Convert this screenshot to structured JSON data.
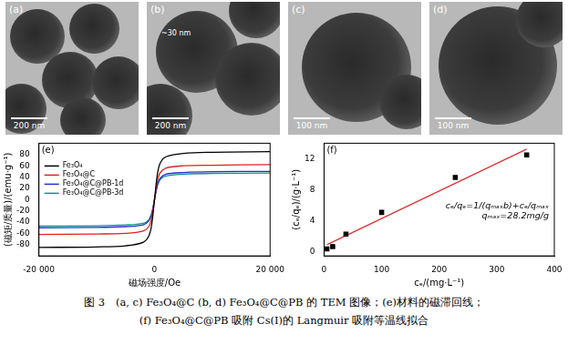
{
  "images": [
    {
      "label": "(a)",
      "scale_bar": "200 nm"
    },
    {
      "label": "(b)",
      "scale_bar": "200 nm",
      "annotation": "~30 nm"
    },
    {
      "label": "(c)",
      "scale_bar": "100 nm"
    },
    {
      "label": "(d)",
      "scale_bar": "100 nm"
    }
  ],
  "chart_data": [
    {
      "type": "line",
      "label": "(e)",
      "x_label": "磁场强度/Oe",
      "y_label": "(磁矩/质量)/(emu·g⁻¹)",
      "x": [
        -20000,
        -10000,
        -5000,
        -2000,
        -1000,
        -500,
        0,
        500,
        1000,
        2000,
        5000,
        10000,
        20000
      ],
      "series": [
        {
          "name": "Fe₃O₄",
          "color": "#000000",
          "values": [
            -85,
            -84,
            -82,
            -76,
            -65,
            -45,
            0,
            45,
            65,
            76,
            82,
            84,
            85
          ]
        },
        {
          "name": "Fe₃O₄@C",
          "color": "#e02020",
          "values": [
            -62,
            -61,
            -60,
            -56,
            -48,
            -33,
            0,
            33,
            48,
            56,
            60,
            61,
            62
          ]
        },
        {
          "name": "Fe₃O₄@C@PB-1d",
          "color": "#2030d0",
          "values": [
            -50,
            -49.5,
            -48,
            -45,
            -38,
            -26,
            0,
            26,
            38,
            45,
            48,
            49.5,
            50
          ]
        },
        {
          "name": "Fe₃O₄@C@PB-3d",
          "color": "#109090",
          "values": [
            -47,
            -46.5,
            -45,
            -42,
            -36,
            -25,
            0,
            25,
            36,
            42,
            45,
            46.5,
            47
          ]
        }
      ],
      "xlim": [
        -20000,
        20000
      ],
      "xticks": [
        {
          "value": -20000,
          "label": "-20 000"
        },
        0,
        {
          "value": 20000,
          "label": "20 000"
        }
      ],
      "ylim": [
        -100,
        100
      ],
      "yticks": [
        -80,
        -60,
        -40,
        -20,
        0,
        20,
        40,
        60,
        80
      ],
      "grid": false,
      "legend": "upper left"
    },
    {
      "type": "scatter",
      "label": "(f)",
      "x_label": "cₑ/(mg·L⁻¹)",
      "y_label": "(cₑ/qₑ)/(g·L⁻¹)",
      "series": [
        {
          "type": "scatter",
          "marker": "square",
          "color": "#000000",
          "x": [
            5,
            15,
            38,
            100,
            228,
            352
          ],
          "values": [
            0.4,
            0.7,
            2.3,
            5.1,
            9.6,
            12.5
          ]
        },
        {
          "type": "line",
          "color": "#e03030",
          "x": [
            5,
            352
          ],
          "values": [
            0.95,
            13.25
          ]
        }
      ],
      "annotations": [
        "cₑ/qₑ=1/(qₘₐₓb)+cₑ/qₘₐₓ",
        "qₘₐₓ=28.2mg/g"
      ],
      "xlim": [
        0,
        400
      ],
      "xticks": [
        0,
        100,
        200,
        300,
        400
      ],
      "ylim": [
        -0.5,
        14
      ],
      "yticks": [
        0,
        4,
        8,
        12
      ],
      "grid": false
    }
  ],
  "caption": [
    "图 3　(a, c) Fe₃O₄@C (b, d) Fe₃O₄@C@PB 的 TEM 图像；(e)材料的磁滞回线；",
    "(f) Fe₃O₄@C@PB 吸附 Cs(I)的 Langmuir 吸附等温线拟合"
  ]
}
